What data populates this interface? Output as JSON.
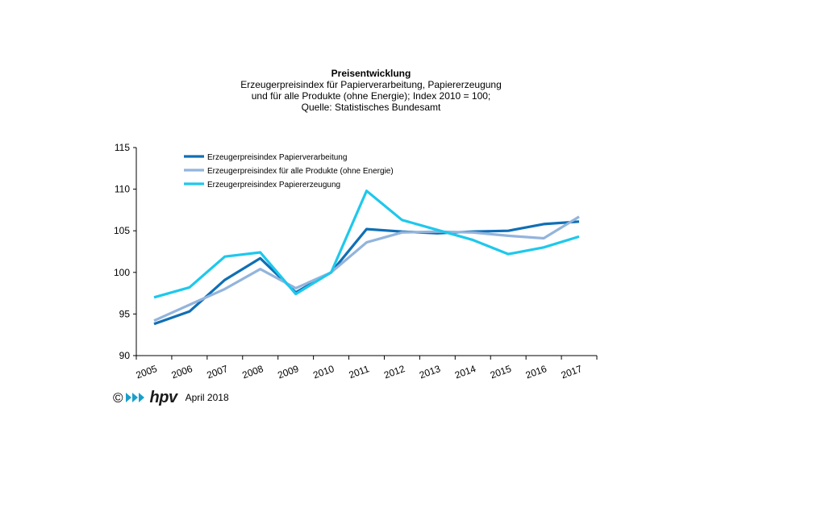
{
  "chart_data": {
    "type": "line",
    "title": "Preisentwicklung",
    "subtitle_lines": [
      "Erzeugerpreisindex  für Papierverarbeitung,  Papiererzeugung",
      "und für alle Produkte (ohne Energie); Index 2010 = 100;",
      "Quelle: Statistisches Bundesamt"
    ],
    "categories": [
      "2005",
      "2006",
      "2007",
      "2008",
      "2009",
      "2010",
      "2011",
      "2012",
      "2013",
      "2014",
      "2015",
      "2016",
      "2017"
    ],
    "ylim": [
      90,
      115
    ],
    "yticks": [
      "90",
      "95",
      "100",
      "105",
      "110",
      "115"
    ],
    "grid": false,
    "legend_position": "top-left",
    "series": [
      {
        "name": "Erzeugerpreisindex Papierverarbeitung",
        "color": "#0f6fb5",
        "values": [
          93.8,
          95.3,
          99.1,
          101.7,
          97.6,
          100.0,
          105.2,
          104.9,
          104.7,
          104.9,
          105.0,
          105.8,
          106.1
        ]
      },
      {
        "name": "Erzeugerpreisindex für alle Produkte (ohne Energie)",
        "color": "#93b4dc",
        "values": [
          94.2,
          96.1,
          98.0,
          100.4,
          98.1,
          100.0,
          103.6,
          104.8,
          104.9,
          104.8,
          104.4,
          104.1,
          106.7
        ]
      },
      {
        "name": "Erzeugerpreisindex Papiererzeugung",
        "color": "#1ec8ec",
        "values": [
          97.0,
          98.2,
          101.9,
          102.4,
          97.4,
          100.0,
          109.8,
          106.3,
          105.1,
          103.9,
          102.2,
          103.0,
          104.3
        ]
      }
    ]
  },
  "footer": {
    "copyright": "©",
    "logo_text": "hpv",
    "date": "April 2018"
  }
}
